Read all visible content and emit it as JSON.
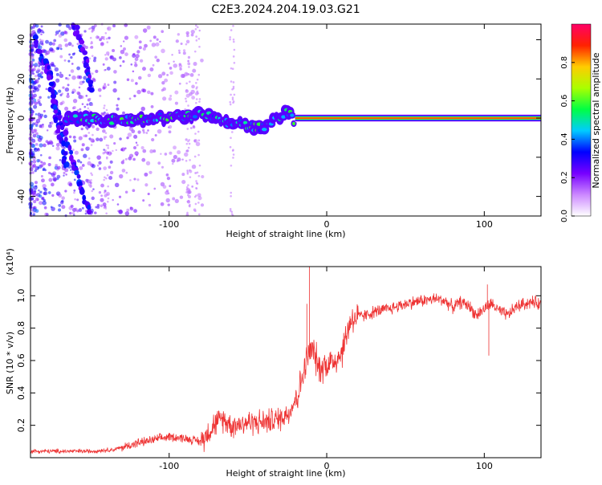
{
  "title": "C2E3.2024.204.19.03.G21",
  "colors": {
    "snr_line": "#ee3333",
    "frame": "#000000",
    "colormap": [
      "#ffffff",
      "#cc88ff",
      "#7700ff",
      "#0000ff",
      "#00ccff",
      "#00ff44",
      "#aaff00",
      "#ffcc00",
      "#ff2200",
      "#ff0066"
    ]
  },
  "chart_data": [
    {
      "type": "heatmap",
      "xlabel": "Height of straight line (km)",
      "ylabel": "Frequency (Hz)",
      "xlim": [
        -188,
        136
      ],
      "ylim": [
        -50,
        48
      ],
      "x_ticks": [
        -100,
        0,
        100
      ],
      "x_tick_labels": [
        "-100",
        "0",
        "100"
      ],
      "y_ticks": [
        -40,
        -20,
        0,
        20,
        40
      ],
      "y_tick_labels": [
        "-40",
        "-20",
        "0",
        "20",
        "40"
      ],
      "grid": false,
      "colorbar": {
        "label": "Normalized spectral amplitude",
        "range": [
          0,
          1
        ],
        "ticks": [
          0,
          0.2,
          0.4,
          0.6,
          0.8
        ],
        "tick_labels": [
          "0.0",
          "0.2",
          "0.4",
          "0.6",
          "0.8"
        ]
      },
      "signal_track": [
        {
          "x": -165,
          "y": 0
        },
        {
          "x": -130,
          "y": -1
        },
        {
          "x": -100,
          "y": 0
        },
        {
          "x": -80,
          "y": 2
        },
        {
          "x": -60,
          "y": -3
        },
        {
          "x": -40,
          "y": -5
        },
        {
          "x": -25,
          "y": 4
        },
        {
          "x": -20,
          "y": -2
        },
        {
          "x": 0,
          "y": -1
        },
        {
          "x": 136,
          "y": 0
        }
      ],
      "interference_tracks": [
        [
          {
            "x": -185,
            "y": 40
          },
          {
            "x": -175,
            "y": 20
          },
          {
            "x": -170,
            "y": 0
          },
          {
            "x": -160,
            "y": -25
          },
          {
            "x": -150,
            "y": -48
          }
        ],
        [
          {
            "x": -160,
            "y": 48
          },
          {
            "x": -153,
            "y": 30
          },
          {
            "x": -150,
            "y": 15
          }
        ],
        [
          {
            "x": -178,
            "y": 30
          },
          {
            "x": -172,
            "y": 0
          },
          {
            "x": -165,
            "y": -25
          }
        ]
      ]
    },
    {
      "type": "line",
      "xlabel": "Height of straight line (km)",
      "ylabel": "SNR (10 * v/v)",
      "y_multiplier": "(x10⁴)",
      "xlim": [
        -188,
        136
      ],
      "ylim": [
        0,
        1.18
      ],
      "x_ticks": [
        -100,
        0,
        100
      ],
      "x_tick_labels": [
        "-100",
        "0",
        "100"
      ],
      "y_ticks": [
        0.2,
        0.4,
        0.6,
        0.8,
        1.0
      ],
      "y_tick_labels": [
        "0.2",
        "0.4",
        "0.6",
        "0.8",
        "1.0"
      ],
      "grid": false,
      "series": [
        {
          "x": [
            -188,
            -170,
            -150,
            -135,
            -120,
            -100,
            -90,
            -80,
            -72,
            -66,
            -60,
            -50,
            -40,
            -30,
            -24,
            -18,
            -14,
            -12,
            -10,
            -8,
            -5,
            0,
            5,
            10,
            15,
            20,
            25,
            30,
            40,
            50,
            60,
            70,
            75,
            80,
            85,
            90,
            95,
            100,
            105,
            110,
            115,
            120,
            125,
            130,
            136
          ],
          "y": [
            0.04,
            0.04,
            0.04,
            0.05,
            0.09,
            0.13,
            0.12,
            0.1,
            0.2,
            0.24,
            0.2,
            0.22,
            0.22,
            0.24,
            0.28,
            0.4,
            0.55,
            0.62,
            0.66,
            0.65,
            0.55,
            0.58,
            0.6,
            0.66,
            0.85,
            0.87,
            0.88,
            0.9,
            0.92,
            0.95,
            0.97,
            0.98,
            0.97,
            0.93,
            0.96,
            0.94,
            0.88,
            0.92,
            0.95,
            0.9,
            0.88,
            0.93,
            0.95,
            0.96,
            0.95
          ]
        }
      ],
      "spikes": [
        {
          "x": -11,
          "y": 1.18
        },
        {
          "x": -12.5,
          "y": 0.95
        },
        {
          "x": 103,
          "y": 0.63
        },
        {
          "x": 102,
          "y": 1.07
        }
      ]
    }
  ]
}
